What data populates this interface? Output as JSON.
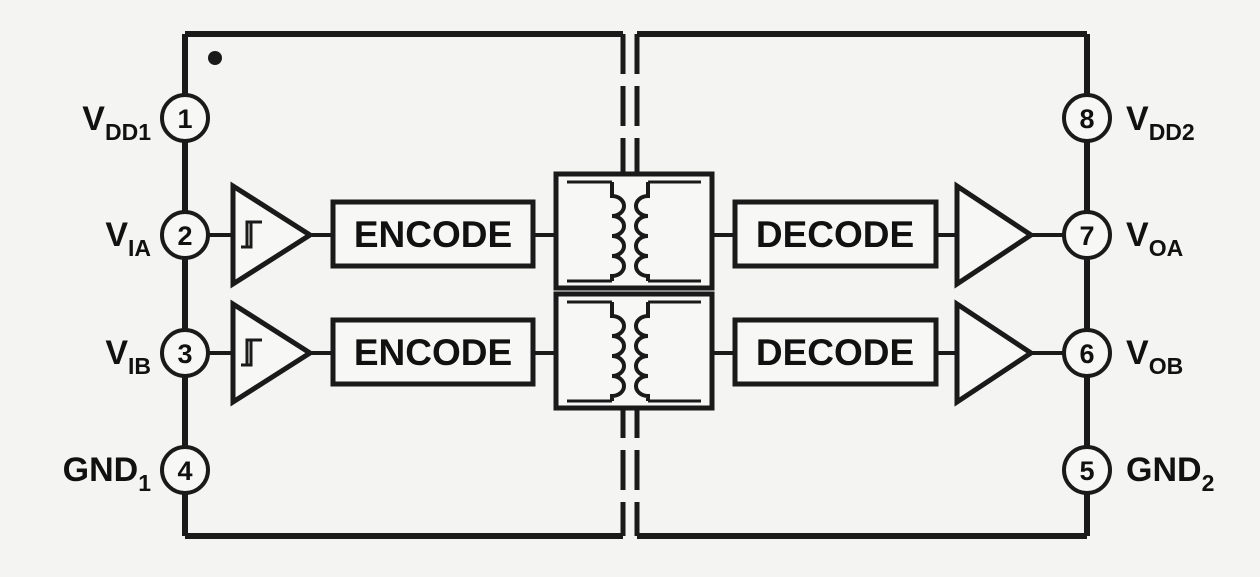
{
  "colors": {
    "ink": "#1a1a1a",
    "background": "#f4f4f3",
    "box_fill": "#f7f7f6"
  },
  "blocks": {
    "encode_a": "ENCODE",
    "encode_b": "ENCODE",
    "decode_a": "DECODE",
    "decode_b": "DECODE"
  },
  "pins": {
    "p1": {
      "number": "1",
      "name": "V",
      "sub": "DD1"
    },
    "p2": {
      "number": "2",
      "name": "V",
      "sub": "IA"
    },
    "p3": {
      "number": "3",
      "name": "V",
      "sub": "IB"
    },
    "p4": {
      "number": "4",
      "name": "GND",
      "sub": "1"
    },
    "p5": {
      "number": "5",
      "name": "GND",
      "sub": "2"
    },
    "p6": {
      "number": "6",
      "name": "V",
      "sub": "OB"
    },
    "p7": {
      "number": "7",
      "name": "V",
      "sub": "OA"
    },
    "p8": {
      "number": "8",
      "name": "V",
      "sub": "DD2"
    }
  }
}
